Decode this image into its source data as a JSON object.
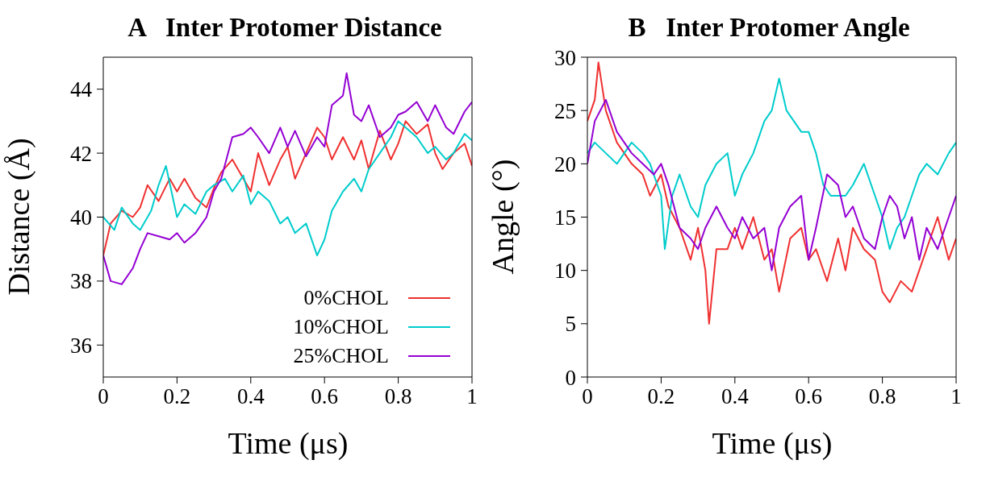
{
  "chart_data": [
    {
      "type": "line",
      "title": "A   Inter Protomer Distance",
      "xlabel": "Time (μs)",
      "ylabel": "Distance (Å)",
      "xlim": [
        0,
        1
      ],
      "xticks": [
        0,
        0.2,
        0.4,
        0.6,
        0.8,
        1
      ],
      "ylim": [
        35,
        45
      ],
      "yticks": [
        36,
        38,
        40,
        42,
        44
      ],
      "legend": "bottom right",
      "marker": "none",
      "line_style": "solid",
      "series": [
        {
          "name": "0%CHOL",
          "color": "#f03030",
          "x": [
            0,
            0.02,
            0.05,
            0.08,
            0.1,
            0.12,
            0.15,
            0.18,
            0.2,
            0.22,
            0.25,
            0.28,
            0.3,
            0.32,
            0.35,
            0.38,
            0.4,
            0.42,
            0.45,
            0.48,
            0.5,
            0.52,
            0.55,
            0.58,
            0.6,
            0.62,
            0.65,
            0.68,
            0.7,
            0.72,
            0.75,
            0.78,
            0.8,
            0.82,
            0.85,
            0.88,
            0.9,
            0.92,
            0.95,
            0.98,
            1
          ],
          "values": [
            38.8,
            39.8,
            40.2,
            40.0,
            40.3,
            41.0,
            40.5,
            41.2,
            40.8,
            41.2,
            40.6,
            40.3,
            40.9,
            41.4,
            41.8,
            41.2,
            40.8,
            42.0,
            41.0,
            41.8,
            42.2,
            41.2,
            42.0,
            42.8,
            42.5,
            41.8,
            42.5,
            41.8,
            42.4,
            41.5,
            42.7,
            41.8,
            42.3,
            43.0,
            42.6,
            42.9,
            42.0,
            41.5,
            42.0,
            42.3,
            41.6
          ]
        },
        {
          "name": "10%CHOL",
          "color": "#00cccc",
          "x": [
            0,
            0.03,
            0.05,
            0.08,
            0.1,
            0.13,
            0.15,
            0.17,
            0.2,
            0.22,
            0.25,
            0.28,
            0.3,
            0.33,
            0.35,
            0.38,
            0.4,
            0.42,
            0.45,
            0.48,
            0.5,
            0.52,
            0.55,
            0.58,
            0.6,
            0.62,
            0.65,
            0.68,
            0.7,
            0.72,
            0.75,
            0.78,
            0.8,
            0.82,
            0.85,
            0.88,
            0.9,
            0.93,
            0.95,
            0.98,
            1
          ],
          "values": [
            40.0,
            39.6,
            40.3,
            39.8,
            39.6,
            40.2,
            41.0,
            41.6,
            40.0,
            40.4,
            40.1,
            40.8,
            41.0,
            41.2,
            40.8,
            41.3,
            40.4,
            40.8,
            40.5,
            39.8,
            40.0,
            39.5,
            39.8,
            38.8,
            39.3,
            40.2,
            40.8,
            41.2,
            40.8,
            41.5,
            42.0,
            42.5,
            43.0,
            42.8,
            42.5,
            42.0,
            42.2,
            41.8,
            42.0,
            42.6,
            42.4
          ]
        },
        {
          "name": "25%CHOL",
          "color": "#9400d3",
          "x": [
            0,
            0.02,
            0.05,
            0.08,
            0.1,
            0.12,
            0.15,
            0.18,
            0.2,
            0.22,
            0.25,
            0.28,
            0.3,
            0.32,
            0.35,
            0.38,
            0.4,
            0.42,
            0.45,
            0.48,
            0.5,
            0.52,
            0.55,
            0.58,
            0.6,
            0.62,
            0.65,
            0.66,
            0.68,
            0.7,
            0.72,
            0.75,
            0.78,
            0.8,
            0.82,
            0.85,
            0.88,
            0.9,
            0.93,
            0.95,
            0.98,
            1
          ],
          "values": [
            38.8,
            38.0,
            37.9,
            38.4,
            39.0,
            39.5,
            39.4,
            39.3,
            39.5,
            39.2,
            39.5,
            40.0,
            40.8,
            41.2,
            42.5,
            42.6,
            42.8,
            42.5,
            42.0,
            42.8,
            42.2,
            42.7,
            41.9,
            42.5,
            42.2,
            43.5,
            43.8,
            44.5,
            43.2,
            43.0,
            43.5,
            42.5,
            42.8,
            43.2,
            43.3,
            43.6,
            43.0,
            43.5,
            42.8,
            42.6,
            43.3,
            43.6
          ]
        }
      ]
    },
    {
      "type": "line",
      "title": "B   Inter Protomer Angle",
      "xlabel": "Time (μs)",
      "ylabel": "Angle (°)",
      "xlim": [
        0,
        1
      ],
      "xticks": [
        0,
        0.2,
        0.4,
        0.6,
        0.8,
        1
      ],
      "ylim": [
        0,
        30
      ],
      "yticks": [
        0,
        5,
        10,
        15,
        20,
        25,
        30
      ],
      "marker": "none",
      "line_style": "solid",
      "series": [
        {
          "color": "#f03030",
          "x": [
            0,
            0.02,
            0.03,
            0.05,
            0.08,
            0.1,
            0.12,
            0.15,
            0.17,
            0.2,
            0.22,
            0.25,
            0.28,
            0.3,
            0.32,
            0.33,
            0.35,
            0.38,
            0.4,
            0.42,
            0.45,
            0.48,
            0.5,
            0.52,
            0.55,
            0.58,
            0.6,
            0.62,
            0.65,
            0.68,
            0.7,
            0.72,
            0.75,
            0.78,
            0.8,
            0.82,
            0.85,
            0.88,
            0.9,
            0.92,
            0.95,
            0.98,
            1
          ],
          "values": [
            24,
            26,
            29.5,
            25,
            22,
            21,
            20,
            19,
            17,
            19,
            16,
            14,
            11,
            14,
            10,
            5,
            12,
            12,
            14,
            12,
            15,
            11,
            12,
            8,
            13,
            14,
            11,
            12,
            9,
            13,
            10,
            14,
            12,
            11,
            8,
            7,
            9,
            8,
            10,
            12,
            15,
            11,
            13
          ]
        },
        {
          "color": "#00cccc",
          "x": [
            0,
            0.02,
            0.05,
            0.08,
            0.1,
            0.12,
            0.15,
            0.17,
            0.2,
            0.21,
            0.23,
            0.25,
            0.28,
            0.3,
            0.32,
            0.35,
            0.38,
            0.4,
            0.42,
            0.45,
            0.48,
            0.5,
            0.52,
            0.54,
            0.56,
            0.58,
            0.6,
            0.62,
            0.64,
            0.66,
            0.7,
            0.72,
            0.75,
            0.78,
            0.8,
            0.82,
            0.84,
            0.86,
            0.88,
            0.9,
            0.92,
            0.95,
            0.98,
            1
          ],
          "values": [
            21,
            22,
            21,
            20,
            21,
            22,
            21,
            20,
            17,
            12,
            17,
            19,
            16,
            15,
            18,
            20,
            21,
            17,
            19,
            21,
            24,
            25,
            28,
            25,
            24,
            23,
            23,
            21,
            18,
            17,
            17,
            18,
            20,
            17,
            15,
            12,
            14,
            15,
            17,
            19,
            20,
            19,
            21,
            22
          ]
        },
        {
          "color": "#9400d3",
          "x": [
            0,
            0.02,
            0.05,
            0.08,
            0.1,
            0.12,
            0.15,
            0.18,
            0.2,
            0.22,
            0.25,
            0.28,
            0.3,
            0.32,
            0.35,
            0.38,
            0.4,
            0.42,
            0.45,
            0.48,
            0.5,
            0.52,
            0.55,
            0.58,
            0.6,
            0.62,
            0.65,
            0.68,
            0.7,
            0.72,
            0.75,
            0.78,
            0.8,
            0.82,
            0.84,
            0.86,
            0.88,
            0.9,
            0.92,
            0.95,
            0.98,
            1
          ],
          "values": [
            20,
            24,
            26,
            23,
            22,
            21,
            20,
            19,
            20,
            18,
            14,
            13,
            12,
            14,
            16,
            14,
            13,
            15,
            13,
            14,
            10,
            14,
            16,
            17,
            11,
            14,
            19,
            18,
            15,
            16,
            13,
            12,
            15,
            17,
            16,
            13,
            15,
            11,
            14,
            12,
            15,
            17
          ]
        }
      ]
    }
  ]
}
